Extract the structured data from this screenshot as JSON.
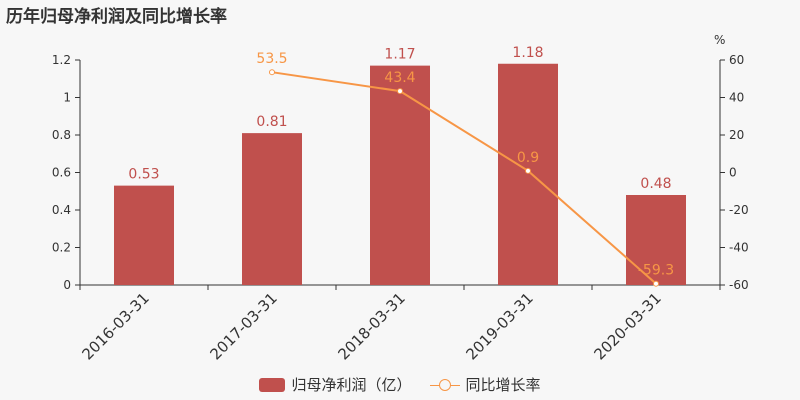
{
  "chart_data": {
    "type": "bar",
    "title": "历年归母净利润及同比增长率",
    "categories": [
      "2016-03-31",
      "2017-03-31",
      "2018-03-31",
      "2019-03-31",
      "2020-03-31"
    ],
    "series": [
      {
        "name": "归母净利润（亿）",
        "type": "bar",
        "axis": "left",
        "values": [
          0.53,
          0.81,
          1.17,
          1.18,
          0.48
        ],
        "labels": [
          "0.53",
          "0.81",
          "1.17",
          "1.18",
          "0.48"
        ],
        "color": "#c0504d"
      },
      {
        "name": "同比增长率",
        "type": "line",
        "axis": "right",
        "values": [
          null,
          53.5,
          43.4,
          0.9,
          -59.3
        ],
        "labels": [
          "",
          "53.5",
          "43.4",
          "0.9",
          "-59.3"
        ],
        "color": "#f79646"
      }
    ],
    "y_left": {
      "ylim": [
        0,
        1.2
      ],
      "ticks": [
        "0",
        "0.2",
        "0.4",
        "0.6",
        "0.8",
        "1",
        "1.2"
      ]
    },
    "y_right": {
      "ylim": [
        -60,
        60
      ],
      "unit": "%",
      "ticks": [
        "-60",
        "-40",
        "-20",
        "0",
        "20",
        "40",
        "60"
      ]
    },
    "grid": false,
    "legend_position": "bottom-center"
  }
}
